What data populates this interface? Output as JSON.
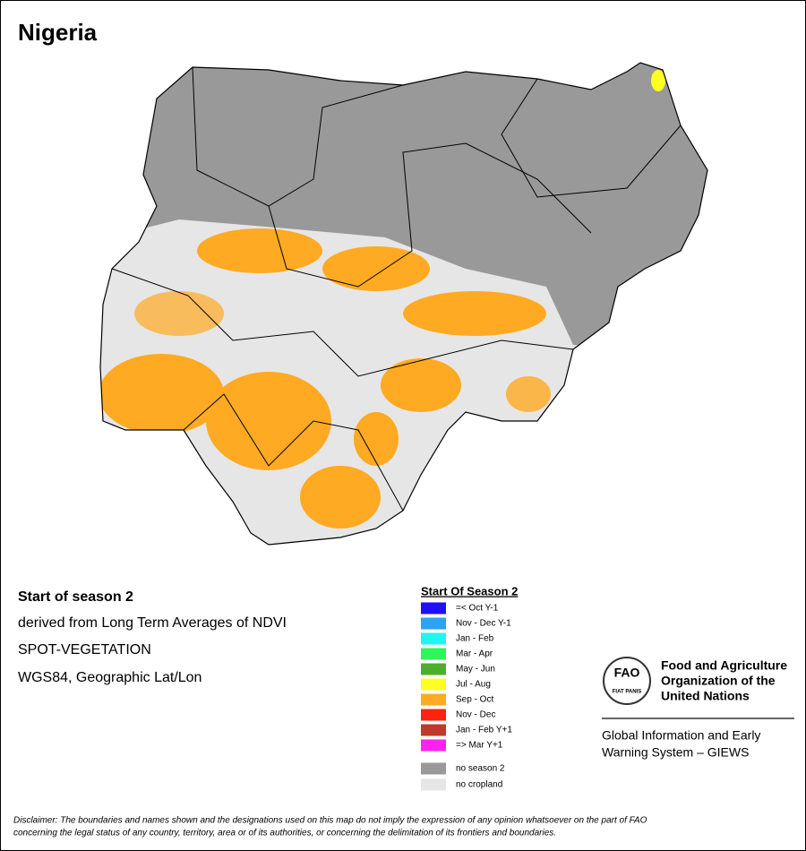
{
  "title": "Nigeria",
  "info": [
    "Start of season 2",
    "derived from Long Term Averages of NDVI",
    "SPOT-VEGETATION",
    "WGS84, Geographic Lat/Lon"
  ],
  "legend": {
    "title": "Start Of Season 2",
    "items": [
      {
        "label": "=< Oct Y-1",
        "color": "#1f10f5"
      },
      {
        "label": "Nov - Dec Y-1",
        "color": "#2aa3f5"
      },
      {
        "label": "Jan - Feb",
        "color": "#22f5f0"
      },
      {
        "label": "Mar - Apr",
        "color": "#2ff55a"
      },
      {
        "label": "May - Jun",
        "color": "#4caf2a"
      },
      {
        "label": "Jul - Aug",
        "color": "#ffff22"
      },
      {
        "label": "Sep - Oct",
        "color": "#ffaa22"
      },
      {
        "label": "Nov - Dec",
        "color": "#ff2211"
      },
      {
        "label": "Jan - Feb Y+1",
        "color": "#c0392b"
      },
      {
        "label": "=> Mar Y+1",
        "color": "#ff22ee"
      }
    ],
    "extra_items": [
      {
        "label": "no season 2",
        "color": "#999999"
      },
      {
        "label": "no cropland",
        "color": "#e6e6e6"
      }
    ]
  },
  "logo": {
    "emblem": "FAO",
    "motto": "FIAT PANIS",
    "org_lines": [
      "Food and Agriculture",
      "Organization of the",
      "United Nations"
    ],
    "system_lines": [
      "Global Information and Early",
      "Warning System – GIEWS"
    ]
  },
  "disclaimer": [
    "Disclaimer: The boundaries and names shown and the designations used on this map do not imply the expression of any opinion whatsoever on the part of FAO",
    "concerning the legal status of any country, territory, area or of its authorities, or concerning the delimitation of its frontiers and boundaries."
  ]
}
